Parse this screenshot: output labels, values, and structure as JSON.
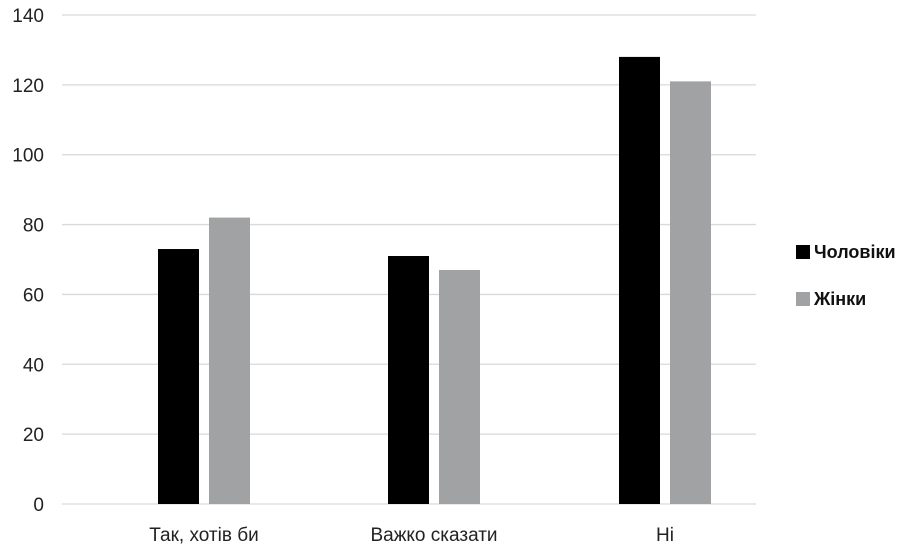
{
  "chart_data": {
    "type": "bar",
    "title": "",
    "xlabel": "",
    "ylabel": "",
    "categories": [
      "Так, хотів би",
      "Важко сказати",
      "Ні"
    ],
    "series": [
      {
        "name": "Чоловіки",
        "values": [
          73,
          71,
          128
        ],
        "color": "#000000"
      },
      {
        "name": "Жінки",
        "values": [
          82,
          67,
          121
        ],
        "color": "#a0a2a4"
      }
    ],
    "ylim": [
      0,
      140
    ],
    "yticks": [
      0,
      20,
      40,
      60,
      80,
      100,
      120,
      140
    ],
    "grid": true,
    "gridColor": "#d9d9d9",
    "legend_position": "right"
  }
}
